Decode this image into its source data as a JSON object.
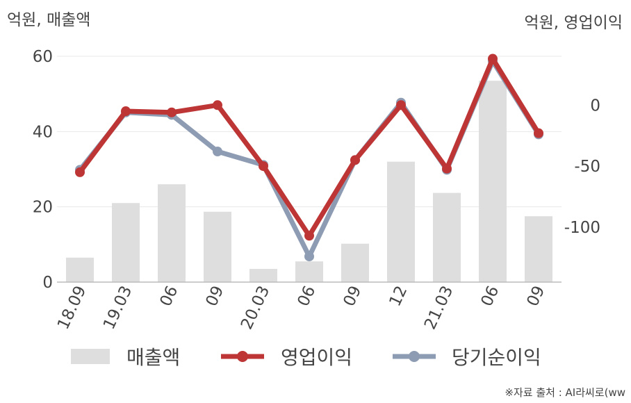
{
  "chart_data": {
    "type": "bar+line",
    "left_unit_label": "억원, 매출액",
    "right_unit_label": "억원, 영업이익",
    "categories": [
      "18.09",
      "19.03",
      "06",
      "09",
      "20.03",
      "06",
      "09",
      "12",
      "21.03",
      "06",
      "09"
    ],
    "series": [
      {
        "name": "매출액",
        "type": "bar",
        "axis": "left",
        "values": [
          6.5,
          21,
          26,
          18.7,
          3.5,
          5.5,
          10.2,
          32,
          23.7,
          53.5,
          17.5
        ]
      },
      {
        "name": "영업이익",
        "type": "line",
        "axis": "right",
        "values": [
          -55,
          -5,
          -6,
          0,
          -50,
          -107,
          -45,
          0,
          -52,
          38,
          -23
        ]
      },
      {
        "name": "당기순이익",
        "type": "line",
        "axis": "right",
        "values": [
          -53,
          -6,
          -8,
          -38,
          -49,
          -124,
          -45,
          2,
          -53,
          36,
          -24
        ]
      }
    ],
    "left_axis": {
      "ylim": [
        0,
        60
      ],
      "ticks": [
        0,
        20,
        40,
        60
      ]
    },
    "right_axis": {
      "ylim": [
        -145,
        40
      ],
      "ticks": [
        0,
        -50,
        -100
      ]
    },
    "grid": true,
    "legend_position": "bottom",
    "colors": {
      "bar": "#dedede",
      "operating_profit": "#be3535",
      "net_profit": "#8e9cb3",
      "grid": "#e8e8e8",
      "axis": "#bbbbbb"
    }
  },
  "legend": {
    "items": [
      "매출액",
      "영업이익",
      "당기순이익"
    ]
  },
  "source": "※자료 출처 : AI라씨로(ww"
}
